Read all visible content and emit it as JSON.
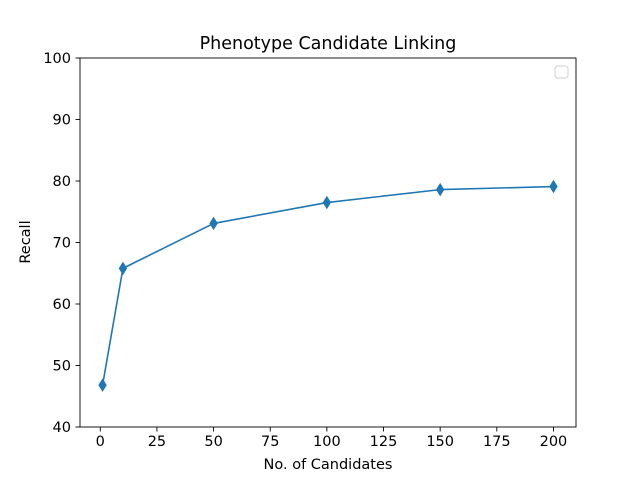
{
  "chart_data": {
    "type": "line",
    "title": "Phenotype Candidate Linking",
    "xlabel": "No. of Candidates",
    "ylabel": "Recall",
    "xlim": [
      -8.95,
      209.95
    ],
    "ylim": [
      40,
      100
    ],
    "x_ticks": [
      0,
      25,
      50,
      75,
      100,
      125,
      150,
      175,
      200
    ],
    "y_ticks": [
      40,
      50,
      60,
      70,
      80,
      90,
      100
    ],
    "grid": false,
    "legend": {
      "placement": "upper right",
      "entries": []
    },
    "series": [
      {
        "color": "#1f77b4",
        "marker": "thin-diamond",
        "x": [
          1,
          10,
          50,
          100,
          150,
          200
        ],
        "y": [
          46.8,
          65.8,
          73.1,
          76.5,
          78.6,
          79.1
        ]
      }
    ]
  }
}
